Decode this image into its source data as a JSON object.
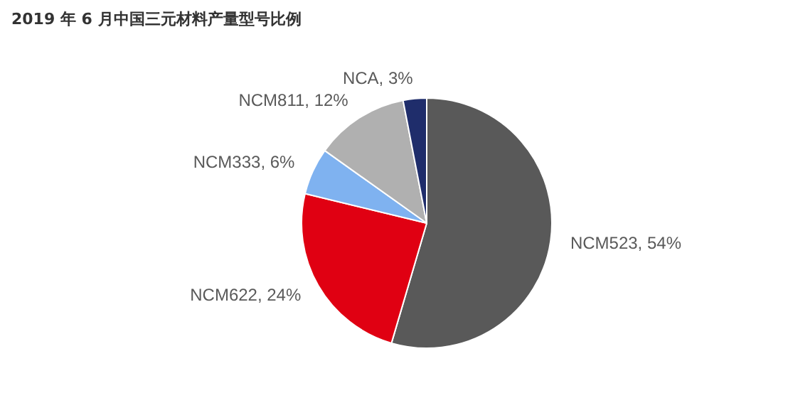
{
  "chart_data": {
    "type": "pie",
    "title": "2019 年 6 月中国三元材料产量型号比例",
    "categories": [
      "NCM523",
      "NCM622",
      "NCM333",
      "NCM811",
      "NCA"
    ],
    "values": [
      54,
      24,
      6,
      12,
      3
    ],
    "value_labels": [
      "54%",
      "24%",
      "6%",
      "12%",
      "3%"
    ],
    "colors": [
      "#595959",
      "#e00012",
      "#7fb2f0",
      "#b0b0b0",
      "#1f2d6b"
    ],
    "legend": false
  }
}
